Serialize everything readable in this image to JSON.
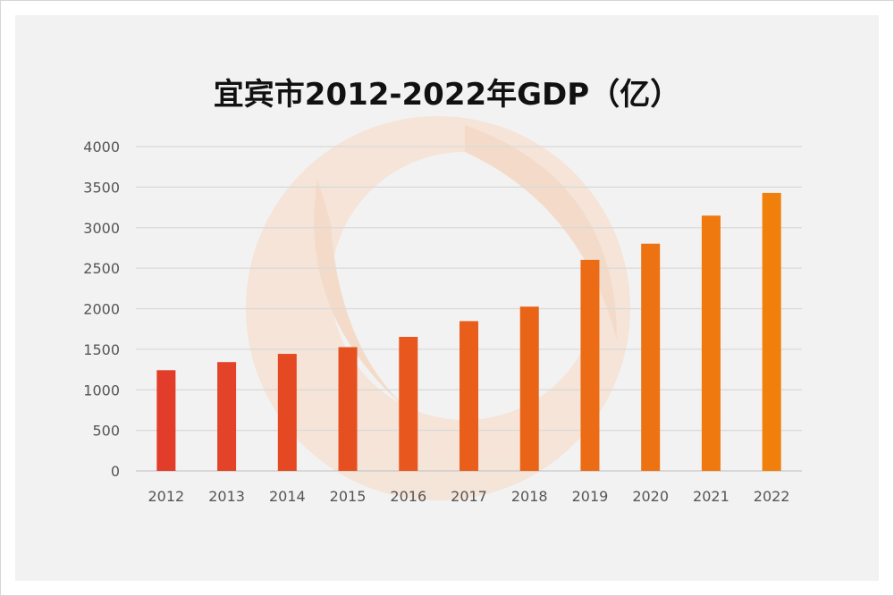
{
  "chart_data": {
    "type": "bar",
    "title": "宜宾市2012-2022年GDP（亿）",
    "categories": [
      "2012",
      "2013",
      "2014",
      "2015",
      "2016",
      "2017",
      "2018",
      "2019",
      "2020",
      "2021",
      "2022"
    ],
    "values": [
      1242,
      1342,
      1443,
      1526,
      1653,
      1847,
      2026,
      2602,
      2802,
      3148,
      3428
    ],
    "ylim": [
      0,
      4000
    ],
    "yticks": [
      0,
      500,
      1000,
      1500,
      2000,
      2500,
      3000,
      3500,
      4000
    ],
    "grid": true,
    "colors": {
      "start": "#e23c2a",
      "end": "#f07f0c",
      "gridline": "#d9d9d9",
      "axis": "#c8c8c8",
      "watermark": "#f6c9a8"
    }
  }
}
